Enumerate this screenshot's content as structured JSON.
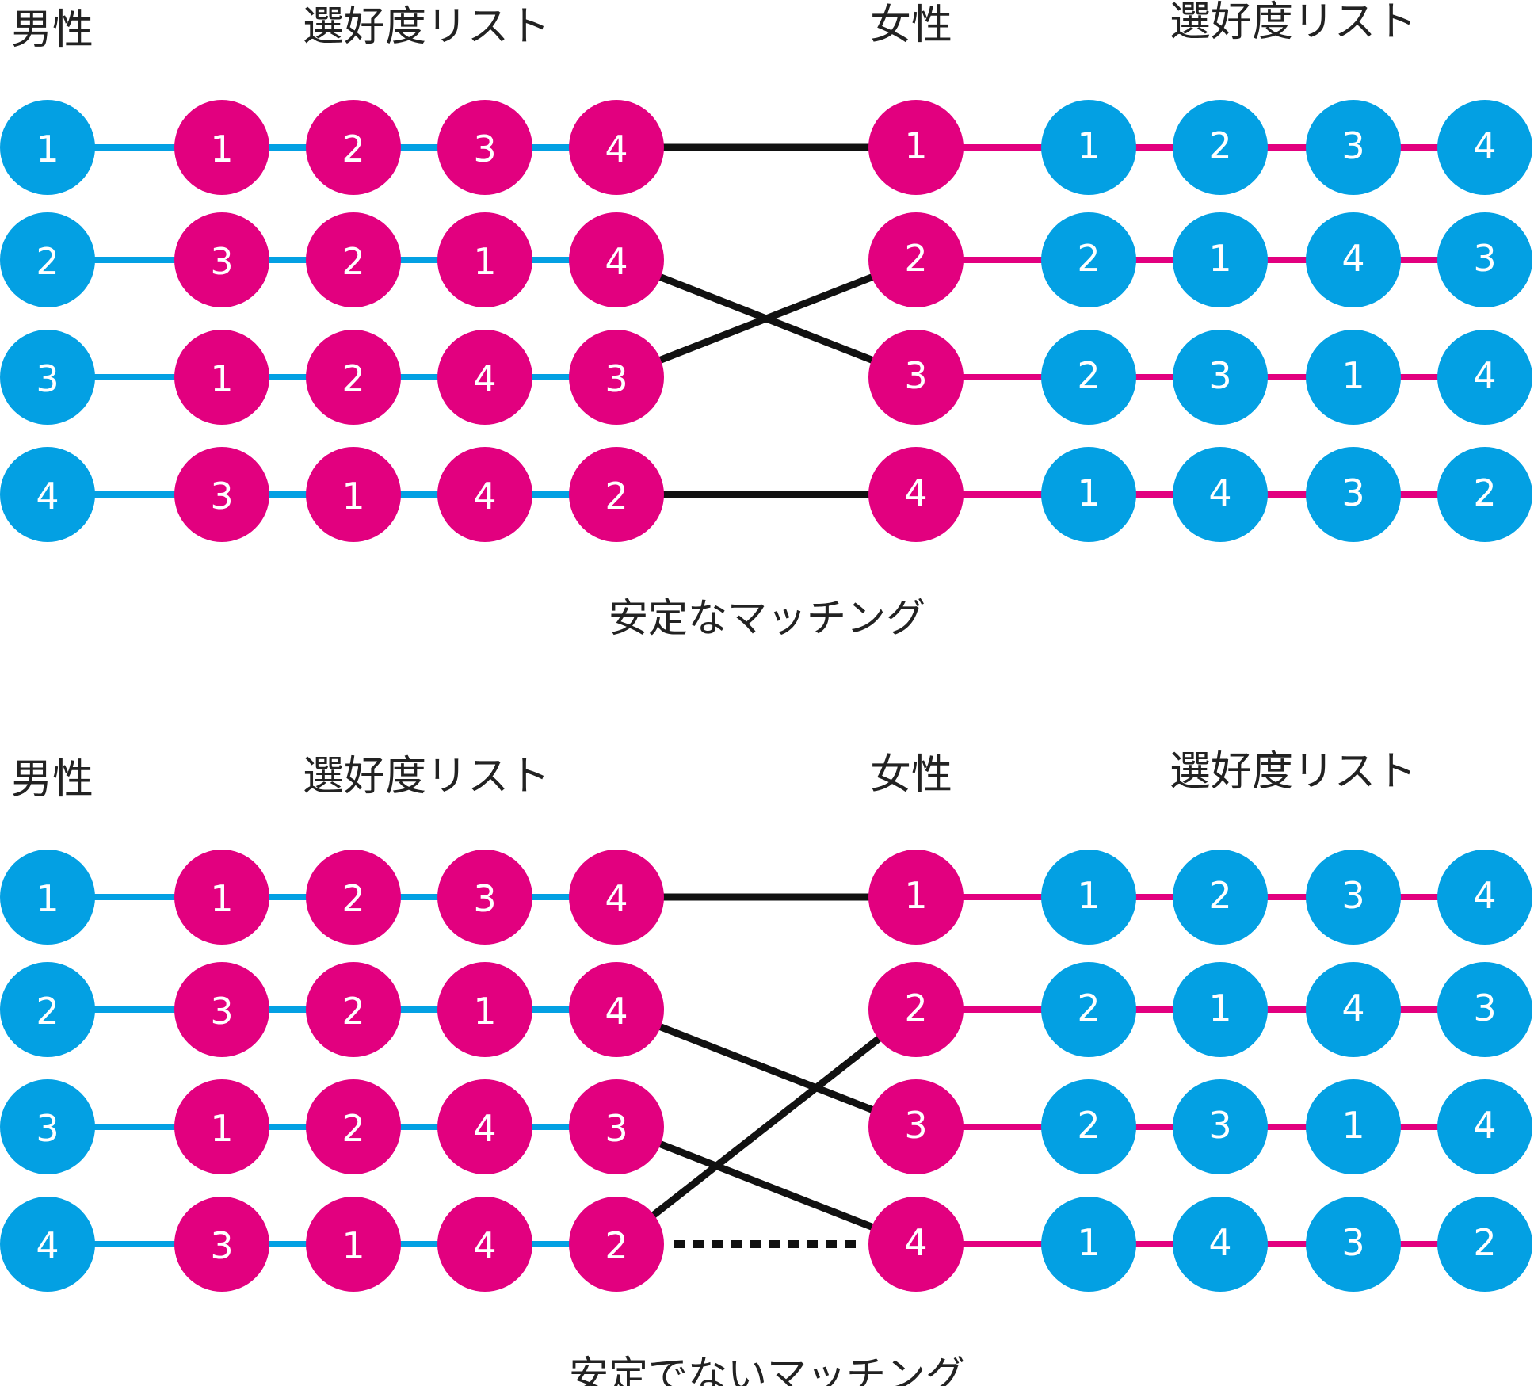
{
  "colors": {
    "men": "#03a0e3",
    "women": "#e2007f",
    "match": "#111111"
  },
  "headers": {
    "men": "男性",
    "men_prefs": "選好度リスト",
    "women": "女性",
    "women_prefs": "選好度リスト"
  },
  "men": [
    {
      "id": "1",
      "prefs": [
        "1",
        "2",
        "3",
        "4"
      ]
    },
    {
      "id": "2",
      "prefs": [
        "3",
        "2",
        "1",
        "4"
      ]
    },
    {
      "id": "3",
      "prefs": [
        "1",
        "2",
        "4",
        "3"
      ]
    },
    {
      "id": "4",
      "prefs": [
        "3",
        "1",
        "4",
        "2"
      ]
    }
  ],
  "women": [
    {
      "id": "1",
      "prefs": [
        "1",
        "2",
        "3",
        "4"
      ]
    },
    {
      "id": "2",
      "prefs": [
        "2",
        "1",
        "4",
        "3"
      ]
    },
    {
      "id": "3",
      "prefs": [
        "2",
        "3",
        "1",
        "4"
      ]
    },
    {
      "id": "4",
      "prefs": [
        "1",
        "4",
        "3",
        "2"
      ]
    }
  ],
  "panels": [
    {
      "caption": "安定なマッチング",
      "matches": [
        {
          "man": 1,
          "woman": 1,
          "style": "solid"
        },
        {
          "man": 2,
          "woman": 3,
          "style": "solid"
        },
        {
          "man": 3,
          "woman": 2,
          "style": "solid"
        },
        {
          "man": 4,
          "woman": 4,
          "style": "solid"
        }
      ]
    },
    {
      "caption": "安定でないマッチング",
      "matches": [
        {
          "man": 1,
          "woman": 1,
          "style": "solid"
        },
        {
          "man": 2,
          "woman": 3,
          "style": "solid"
        },
        {
          "man": 3,
          "woman": 4,
          "style": "solid"
        },
        {
          "man": 4,
          "woman": 2,
          "style": "solid"
        },
        {
          "man": 4,
          "woman": 4,
          "style": "dotted"
        }
      ]
    }
  ]
}
